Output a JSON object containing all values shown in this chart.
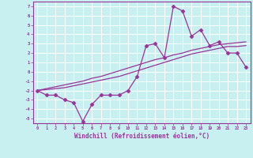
{
  "xlabel": "Windchill (Refroidissement éolien,°C)",
  "bg_color": "#c8f0f0",
  "line_color": "#993399",
  "grid_color": "#ffffff",
  "x_hours": [
    0,
    1,
    2,
    3,
    4,
    5,
    6,
    7,
    8,
    9,
    10,
    11,
    12,
    13,
    14,
    15,
    16,
    17,
    18,
    19,
    20,
    21,
    22,
    23
  ],
  "main_line": [
    -2,
    -2.5,
    -2.5,
    -3,
    -3.3,
    -5.3,
    -3.5,
    -2.5,
    -2.5,
    -2.5,
    -2.0,
    -0.5,
    2.8,
    3.0,
    1.5,
    7.0,
    6.5,
    3.8,
    4.5,
    2.8,
    3.2,
    2.0,
    2.0,
    0.5
  ],
  "ref_line1": [
    -2.0,
    -1.8,
    -1.6,
    -1.4,
    -1.2,
    -1.0,
    -0.7,
    -0.5,
    -0.2,
    0.1,
    0.4,
    0.7,
    1.0,
    1.3,
    1.5,
    1.8,
    2.0,
    2.3,
    2.5,
    2.7,
    2.9,
    3.0,
    3.1,
    3.2
  ],
  "ref_line2": [
    -2.0,
    -1.9,
    -1.8,
    -1.7,
    -1.5,
    -1.3,
    -1.1,
    -0.9,
    -0.7,
    -0.5,
    -0.2,
    0.1,
    0.4,
    0.7,
    1.0,
    1.3,
    1.6,
    1.9,
    2.1,
    2.3,
    2.5,
    2.7,
    2.7,
    2.8
  ],
  "ylim": [
    -5.5,
    7.5
  ],
  "xlim": [
    -0.5,
    23.5
  ],
  "yticks": [
    -5,
    -4,
    -3,
    -2,
    -1,
    0,
    1,
    2,
    3,
    4,
    5,
    6,
    7
  ],
  "xticks": [
    0,
    1,
    2,
    3,
    4,
    5,
    6,
    7,
    8,
    9,
    10,
    11,
    12,
    13,
    14,
    15,
    16,
    17,
    18,
    19,
    20,
    21,
    22,
    23
  ]
}
